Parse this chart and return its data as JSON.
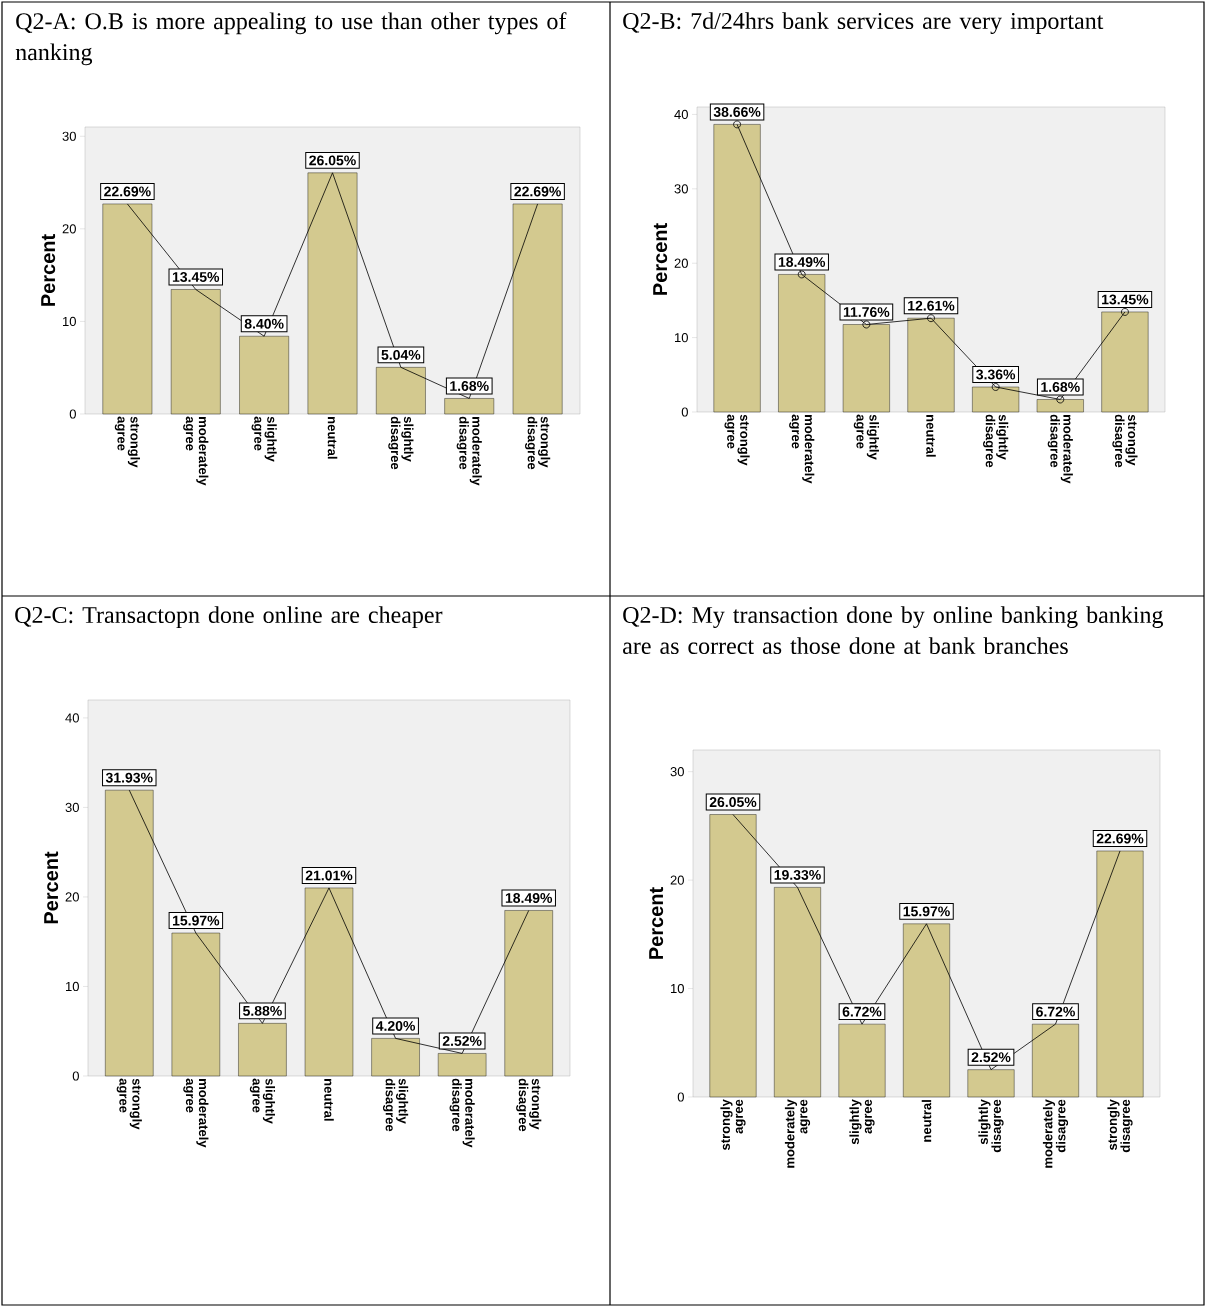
{
  "chart_data": [
    {
      "type": "bar",
      "title": "Q2-A: O.B is more appealing to use than other types of nanking",
      "ylabel": "Percent",
      "categories": [
        "strongly agree",
        "moderately agree",
        "slightly agree",
        "neutral",
        "slightly disagree",
        "moderately disagree",
        "strongly disagree"
      ],
      "ylim": [
        0,
        31
      ],
      "yticks": [
        0,
        10,
        20,
        30
      ],
      "series": [
        {
          "color": "#d3c98f",
          "values": [
            22.69,
            13.45,
            8.4,
            26.05,
            5.04,
            1.68,
            22.69
          ],
          "value_labels": [
            "22.69%",
            "13.45%",
            "8.40%",
            "26.05%",
            "5.04%",
            "1.68%",
            "22.69%"
          ]
        },
        {
          "type": "line",
          "color": "#000000",
          "values": [
            22.69,
            13.45,
            8.4,
            26.05,
            5.04,
            1.68,
            22.69
          ]
        }
      ]
    },
    {
      "type": "bar",
      "title": "Q2-B: 7d/24hrs bank services are very important",
      "ylabel": "Percent",
      "categories": [
        "strongly agree",
        "moderately agree",
        "slightly agree",
        "neutral",
        "slightly disagree",
        "moderately disagree",
        "strongly disagree"
      ],
      "ylim": [
        0,
        41
      ],
      "yticks": [
        0,
        10,
        20,
        30,
        40
      ],
      "series": [
        {
          "color": "#d3c98f",
          "values": [
            38.66,
            18.49,
            11.76,
            12.61,
            3.36,
            1.68,
            13.45
          ],
          "value_labels": [
            "38.66%",
            "18.49%",
            "11.76%",
            "12.61%",
            "3.36%",
            "1.68%",
            "13.45%"
          ]
        },
        {
          "type": "line",
          "color": "#000000",
          "marker": "circle",
          "values": [
            38.66,
            18.49,
            11.76,
            12.61,
            3.36,
            1.68,
            13.45
          ]
        }
      ]
    },
    {
      "type": "bar",
      "title": "Q2-C: Transactopn done online are cheaper",
      "ylabel": "Percent",
      "categories": [
        "strongly agree",
        "moderately agree",
        "slightly agree",
        "neutral",
        "slightly disagree",
        "moderately disagree",
        "strongly disagree"
      ],
      "ylim": [
        0,
        42
      ],
      "yticks": [
        0,
        10,
        20,
        30,
        40
      ],
      "series": [
        {
          "color": "#d3c98f",
          "values": [
            31.93,
            15.97,
            5.88,
            21.01,
            4.2,
            2.52,
            18.49
          ],
          "value_labels": [
            "31.93%",
            "15.97%",
            "5.88%",
            "21.01%",
            "4.20%",
            "2.52%",
            "18.49%"
          ]
        },
        {
          "type": "line",
          "color": "#000000",
          "values": [
            31.93,
            15.97,
            5.88,
            21.01,
            4.2,
            2.52,
            18.49
          ]
        }
      ]
    },
    {
      "type": "bar",
      "title": "Q2-D: My transaction done by online banking banking are as correct as those done at bank branches",
      "ylabel": "Percent",
      "categories": [
        "strongly agree",
        "moderately agree",
        "slightly agree",
        "neutral",
        "slightly disagree",
        "moderately disagree",
        "strongly disagree"
      ],
      "ylim": [
        0,
        32
      ],
      "yticks": [
        0,
        10,
        20,
        30
      ],
      "series": [
        {
          "color": "#d3c98f",
          "values": [
            26.05,
            19.33,
            6.72,
            15.97,
            2.52,
            6.72,
            22.69
          ],
          "value_labels": [
            "26.05%",
            "19.33%",
            "6.72%",
            "15.97%",
            "2.52%",
            "6.72%",
            "22.69%"
          ]
        },
        {
          "type": "line",
          "color": "#000000",
          "values": [
            26.05,
            19.33,
            6.72,
            15.97,
            2.52,
            6.72,
            22.69
          ]
        }
      ]
    }
  ]
}
